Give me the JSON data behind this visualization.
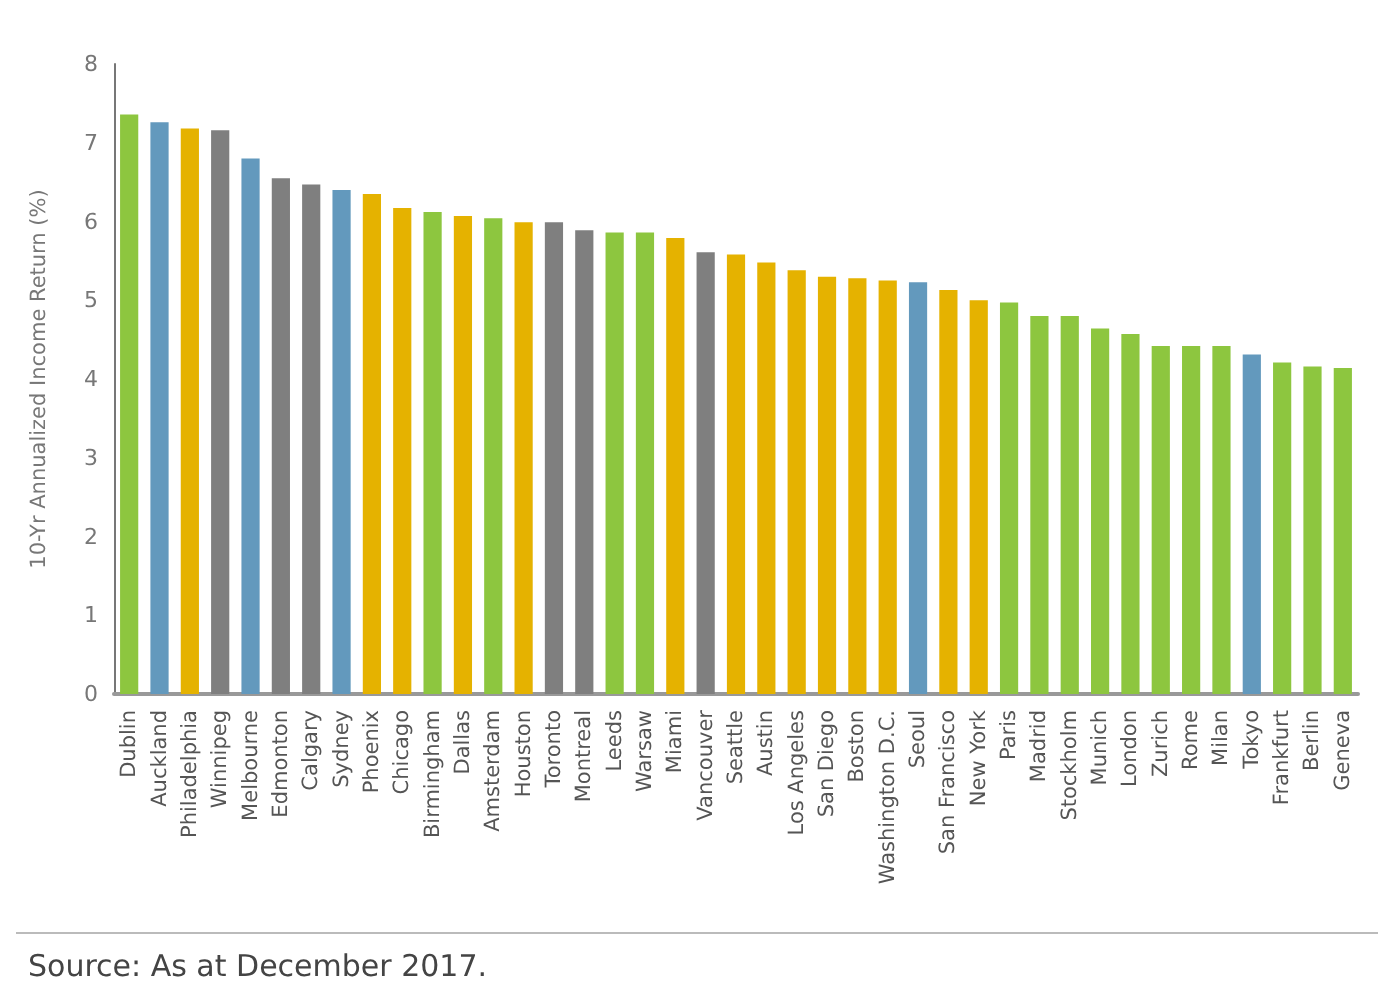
{
  "chart_data": {
    "type": "bar",
    "ylabel": "10-Yr Annualized Income Return (%)",
    "categories": [
      "Dublin",
      "Auckland",
      "Philadelphia",
      "Winnipeg",
      "Melbourne",
      "Edmonton",
      "Calgary",
      "Sydney",
      "Phoenix",
      "Chicago",
      "Birmingham",
      "Dallas",
      "Amsterdam",
      "Houston",
      "Toronto",
      "Montreal",
      "Leeds",
      "Warsaw",
      "Miami",
      "Vancouver",
      "Seattle",
      "Austin",
      "Los Angeles",
      "San Diego",
      "Boston",
      "Washington D.C.",
      "Seoul",
      "San Francisco",
      "New York",
      "Paris",
      "Madrid",
      "Stockholm",
      "Munich",
      "London",
      "Zurich",
      "Rome",
      "Milan",
      "Tokyo",
      "Frankfurt",
      "Berlin",
      "Geneva"
    ],
    "values": [
      7.36,
      7.26,
      7.18,
      7.16,
      6.8,
      6.55,
      6.47,
      6.4,
      6.35,
      6.17,
      6.12,
      6.07,
      6.04,
      5.99,
      5.99,
      5.89,
      5.86,
      5.86,
      5.79,
      5.61,
      5.58,
      5.48,
      5.38,
      5.3,
      5.28,
      5.25,
      5.23,
      5.13,
      5.0,
      4.97,
      4.8,
      4.8,
      4.64,
      4.57,
      4.42,
      4.42,
      4.42,
      4.31,
      4.21,
      4.16,
      4.14
    ],
    "colors": [
      "#8dc63f",
      "#6399bd",
      "#e5b200",
      "#7f7f7f",
      "#6399bd",
      "#7f7f7f",
      "#7f7f7f",
      "#6399bd",
      "#e5b200",
      "#e5b200",
      "#8dc63f",
      "#e5b200",
      "#8dc63f",
      "#e5b200",
      "#7f7f7f",
      "#7f7f7f",
      "#8dc63f",
      "#8dc63f",
      "#e5b200",
      "#7f7f7f",
      "#e5b200",
      "#e5b200",
      "#e5b200",
      "#e5b200",
      "#e5b200",
      "#e5b200",
      "#6399bd",
      "#e5b200",
      "#e5b200",
      "#8dc63f",
      "#8dc63f",
      "#8dc63f",
      "#8dc63f",
      "#8dc63f",
      "#8dc63f",
      "#8dc63f",
      "#8dc63f",
      "#6399bd",
      "#8dc63f",
      "#8dc63f",
      "#8dc63f"
    ],
    "ylim": [
      0,
      8
    ],
    "yticks": [
      0,
      1,
      2,
      3,
      4,
      5,
      6,
      7,
      8
    ],
    "grid": false,
    "annotations": [
      "Source: As at December 2017."
    ]
  }
}
